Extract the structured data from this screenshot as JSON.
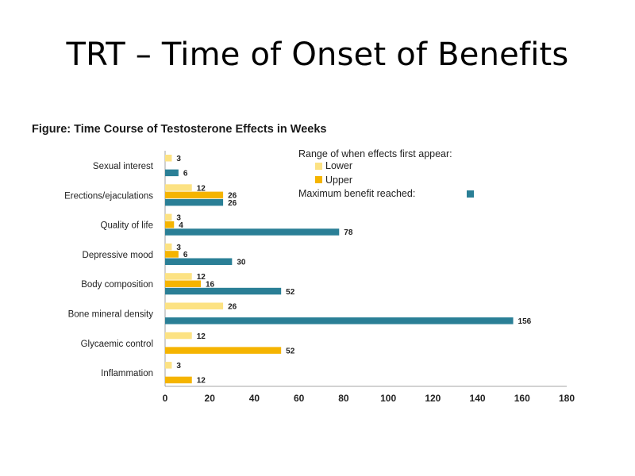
{
  "slide": {
    "title": "TRT – Time of Onset of Benefits"
  },
  "colors": {
    "lower": "#fce283",
    "upper": "#f5b400",
    "max": "#2a7f96"
  },
  "chart_data": {
    "type": "bar",
    "orientation": "horizontal",
    "title": "Figure: Time Course of Testosterone Effects in Weeks",
    "categories": [
      "Sexual interest",
      "Erections/ejaculations",
      "Quality of life",
      "Depressive mood",
      "Body composition",
      "Bone mineral density",
      "Glycaemic control",
      "Inflammation"
    ],
    "series": [
      {
        "name": "Lower",
        "values": [
          3,
          12,
          3,
          3,
          12,
          26,
          12,
          3
        ]
      },
      {
        "name": "Upper",
        "values": [
          null,
          26,
          4,
          6,
          16,
          null,
          52,
          12
        ]
      },
      {
        "name": "Maximum benefit reached",
        "values": [
          6,
          26,
          78,
          30,
          52,
          156,
          null,
          null
        ]
      }
    ],
    "xlim": [
      0,
      180
    ],
    "xticks": [
      0,
      20,
      40,
      60,
      80,
      100,
      120,
      140,
      160,
      180
    ],
    "legend": {
      "heading": "Range of when effects first appear:",
      "lower_label": "Lower",
      "upper_label": "Upper",
      "max_label": "Maximum benefit reached:",
      "placement": "top-right"
    }
  }
}
